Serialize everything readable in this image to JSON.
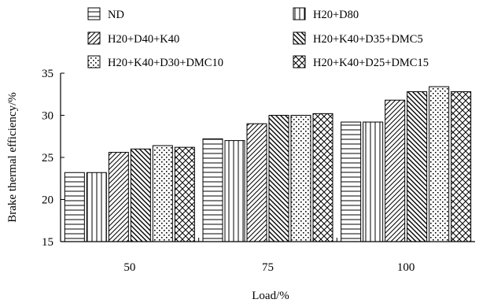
{
  "chart_data": {
    "type": "bar",
    "xlabel": "Load/%",
    "ylabel": "Brake thermal efficiency/%",
    "ylim": [
      15,
      35
    ],
    "yticks": [
      15,
      20,
      25,
      30,
      35
    ],
    "categories": [
      "50",
      "75",
      "100"
    ],
    "series": [
      {
        "name": "ND",
        "values": [
          23.2,
          27.2,
          29.2
        ]
      },
      {
        "name": "H20+D80",
        "values": [
          23.2,
          27.0,
          29.2
        ]
      },
      {
        "name": "H20+D40+K40",
        "values": [
          25.6,
          29.0,
          31.8
        ]
      },
      {
        "name": "H20+K40+D35+DMC5",
        "values": [
          26.0,
          30.0,
          32.8
        ]
      },
      {
        "name": "H20+K40+D30+DMC10",
        "values": [
          26.4,
          30.0,
          33.4
        ]
      },
      {
        "name": "H20+K40+D25+DMC15",
        "values": [
          26.2,
          30.2,
          32.8
        ]
      }
    ],
    "legend_position": "top",
    "grid": false
  }
}
